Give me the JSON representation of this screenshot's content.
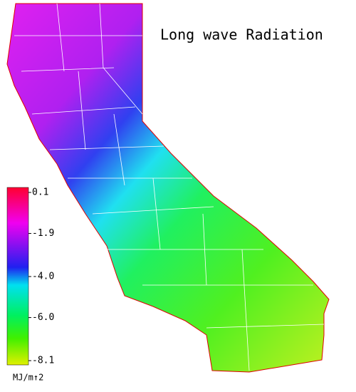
{
  "title": "Long wave Radiation",
  "colorbar": {
    "lim": [
      -8.1,
      0.1
    ],
    "ticks": [
      0.1,
      -1.9,
      {
        "value": -4,
        "label": "-4.0"
      },
      {
        "value": -6,
        "label": "-6.0"
      },
      -8.1
    ],
    "unit": "MJ/m↑2"
  }
}
